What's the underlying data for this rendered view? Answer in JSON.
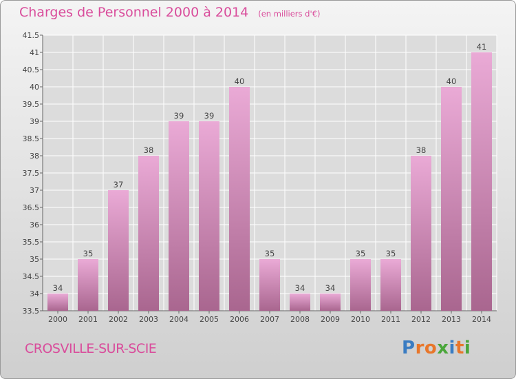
{
  "title": "Charges de Personnel 2000 à 2014",
  "subtitle": "(en milliers d'€)",
  "town": "CROSVILLE-SUR-SCIE",
  "brand": {
    "text": "Proxiti",
    "letter_colors": [
      "#3a7cc2",
      "#e8762a",
      "#e8762a",
      "#4aa63a",
      "#3a7cc2",
      "#e8762a",
      "#4aa63a"
    ]
  },
  "colors": {
    "accent": "#d94c9b",
    "bar_top": "#eaaad6",
    "bar_bottom": "#a9668f",
    "grid": "#ffffff"
  },
  "chart_data": {
    "type": "bar",
    "categories": [
      "2000",
      "2001",
      "2002",
      "2003",
      "2004",
      "2005",
      "2006",
      "2007",
      "2008",
      "2009",
      "2010",
      "2011",
      "2012",
      "2013",
      "2014"
    ],
    "values": [
      34,
      35,
      37,
      38,
      39,
      39,
      40,
      35,
      34,
      34,
      35,
      35,
      38,
      40,
      41
    ],
    "data_labels": [
      "34",
      "35",
      "37",
      "38",
      "39",
      "39",
      "40",
      "35",
      "34",
      "34",
      "35",
      "35",
      "38",
      "40",
      "41"
    ],
    "y_ticks": [
      "33.5",
      "34",
      "34.5",
      "35",
      "35.5",
      "36",
      "36.5",
      "37",
      "37.5",
      "38",
      "38.5",
      "39",
      "39.5",
      "40",
      "40.5",
      "41",
      "41.5"
    ],
    "ylim": [
      33.5,
      41.5
    ],
    "grid": true,
    "legend": "none"
  }
}
